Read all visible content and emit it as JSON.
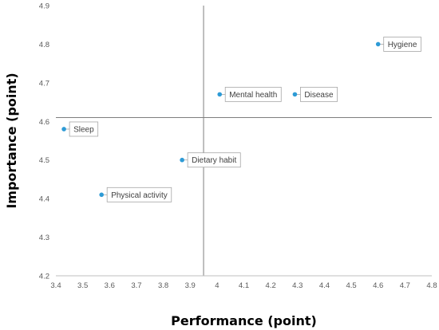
{
  "chart_data": {
    "type": "scatter",
    "title": "",
    "xlabel": "Performance (point)",
    "ylabel": "Importance (point)",
    "xlim": [
      3.4,
      4.8
    ],
    "ylim": [
      4.2,
      4.9
    ],
    "xticks": [
      "3.4",
      "3.5",
      "3.6",
      "3.7",
      "3.8",
      "3.9",
      "4",
      "4.1",
      "4.2",
      "4.3",
      "4.4",
      "4.5",
      "4.6",
      "4.7",
      "4.8"
    ],
    "yticks": [
      "4.2",
      "4.3",
      "4.4",
      "4.5",
      "4.6",
      "4.7",
      "4.8",
      "4.9"
    ],
    "grid": false,
    "reference_lines": {
      "x": 3.95,
      "y": 4.61
    },
    "points": [
      {
        "label": "Hygiene",
        "x": 4.6,
        "y": 4.8
      },
      {
        "label": "Mental health",
        "x": 4.01,
        "y": 4.67
      },
      {
        "label": "Disease",
        "x": 4.29,
        "y": 4.67
      },
      {
        "label": "Sleep",
        "x": 3.43,
        "y": 4.58
      },
      {
        "label": "Dietary habit",
        "x": 3.87,
        "y": 4.5
      },
      {
        "label": "Physical activity",
        "x": 3.57,
        "y": 4.41
      }
    ],
    "colors": {
      "point": "#2e9bd6",
      "axis": "#bfbfbf",
      "refline": "#7f7f7f",
      "label_border": "#a6a6a6"
    }
  }
}
